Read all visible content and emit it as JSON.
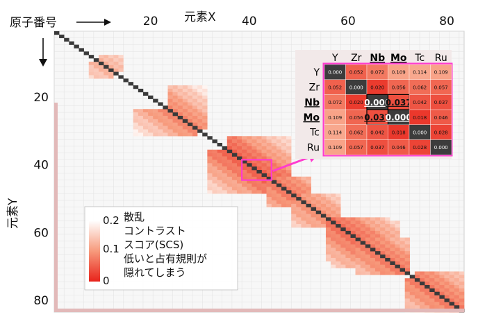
{
  "chart_data": {
    "type": "heatmap",
    "title": "",
    "xlabel": "元素X",
    "ylabel": "元素Y",
    "corner_label": "原子番号",
    "x_ticks": [
      20,
      40,
      60,
      80
    ],
    "y_ticks": [
      20,
      40,
      60,
      80
    ],
    "xlim": [
      1,
      83
    ],
    "ylim": [
      1,
      83
    ],
    "diagonal_value": 0.0,
    "low_score_blocks": [
      {
        "x_range": [
          36,
          48
        ],
        "y_range": [
          32,
          46
        ],
        "level": 0.03
      },
      {
        "x_range": [
          24,
          31
        ],
        "y_range": [
          17,
          29
        ],
        "level": 0.06
      },
      {
        "x_range": [
          44,
          52
        ],
        "y_range": [
          44,
          52
        ],
        "level": 0.05
      },
      {
        "x_range": [
          51,
          58
        ],
        "y_range": [
          49,
          58
        ],
        "level": 0.07
      },
      {
        "x_range": [
          57,
          68
        ],
        "y_range": [
          56,
          70
        ],
        "level": 0.04
      },
      {
        "x_range": [
          62,
          72
        ],
        "y_range": [
          62,
          72
        ],
        "level": 0.05
      },
      {
        "x_range": [
          74,
          83
        ],
        "y_range": [
          72,
          83
        ],
        "level": 0.05
      },
      {
        "x_range": [
          10,
          14
        ],
        "y_range": [
          8,
          12
        ],
        "level": 0.1
      }
    ],
    "colorbar": {
      "min": 0,
      "mid": 0.1,
      "max": 0.2,
      "tick_labels": [
        "0.2",
        "0.1",
        "0"
      ],
      "colors": [
        "#ffffff",
        "#f79a7c",
        "#e8231b"
      ]
    },
    "legend_lines": [
      "散乱",
      "コントラスト",
      "スコア(SCS)",
      "低いと占有規則が",
      "隠れてしまう"
    ],
    "highlight": {
      "x_range": [
        39,
        44
      ],
      "y_range": [
        39,
        44
      ]
    },
    "zoom": {
      "labels": [
        "Y",
        "Zr",
        "Nb",
        "Mo",
        "Tc",
        "Ru"
      ],
      "bold_labels": [
        "Nb",
        "Mo"
      ],
      "matrix": [
        [
          "0.000",
          "0.052",
          "0.072",
          "0.109",
          "0.114",
          "0.109"
        ],
        [
          "0.052",
          "0.000",
          "0.020",
          "0.056",
          "0.062",
          "0.057"
        ],
        [
          "0.072",
          "0.020",
          "0.000",
          "0.037",
          "0.042",
          "0.037"
        ],
        [
          "0.109",
          "0.056",
          "0.037",
          "0.000",
          "0.018",
          "0.046"
        ],
        [
          "0.114",
          "0.062",
          "0.042",
          "0.018",
          "0.000",
          "0.028"
        ],
        [
          "0.109",
          "0.057",
          "0.037",
          "0.046",
          "0.028",
          "0.000"
        ]
      ],
      "emphasis_cells": [
        [
          2,
          2
        ],
        [
          2,
          3
        ],
        [
          3,
          2
        ],
        [
          3,
          3
        ]
      ]
    },
    "colors": {
      "diagonal": "#3a3a3a",
      "highlight": "#ff3ccf",
      "axis": "#111111"
    }
  }
}
